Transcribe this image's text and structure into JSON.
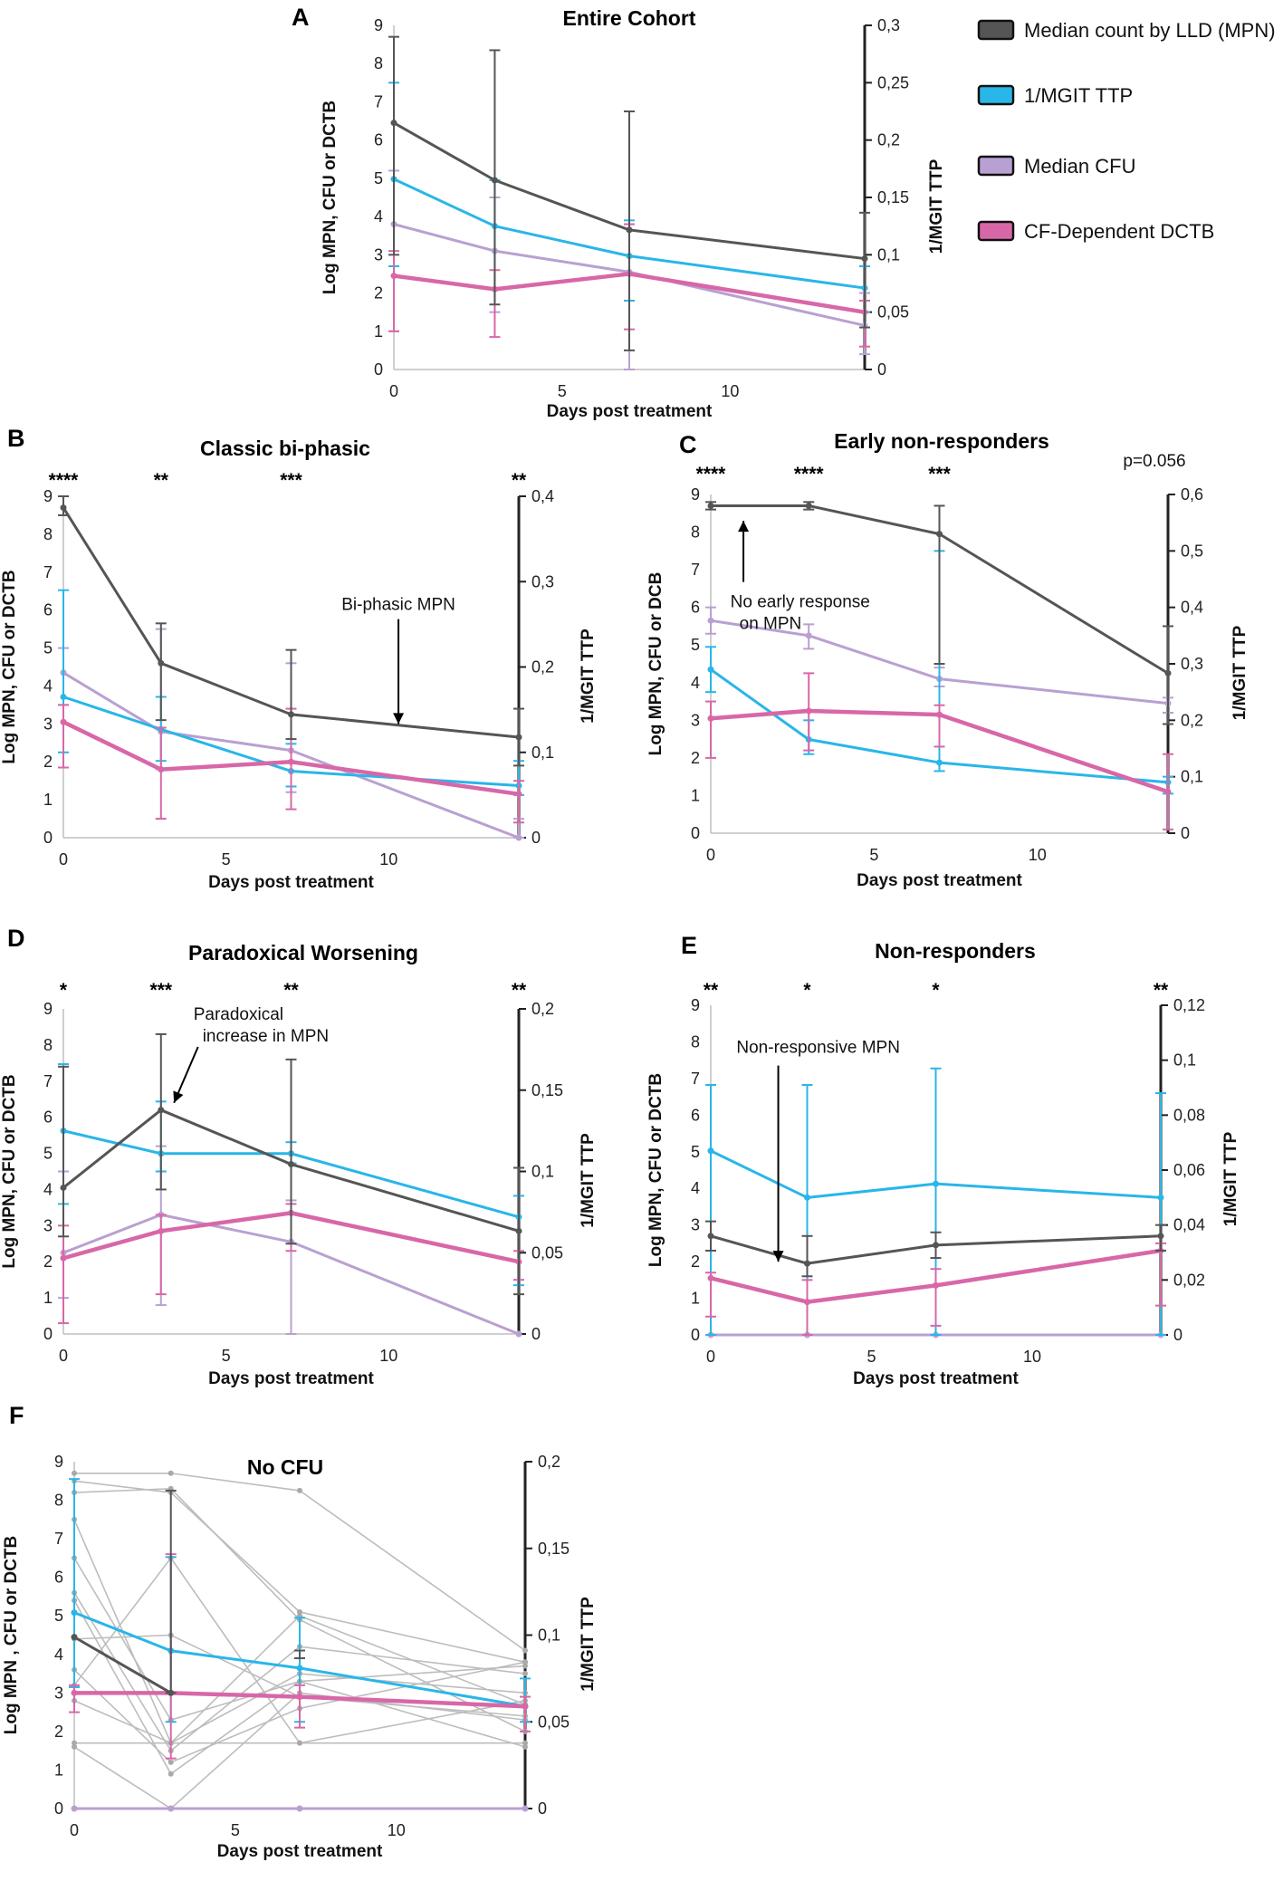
{
  "colors": {
    "mpn": "#555555",
    "mgit": "#29b6e8",
    "cfu": "#b9a0d2",
    "dctb": "#d867a8",
    "individual": "#bdbdbd"
  },
  "legend": [
    {
      "key": "mpn",
      "label": "Median count by LLD (MPN)"
    },
    {
      "key": "mgit",
      "label": "1/MGIT TTP"
    },
    {
      "key": "cfu",
      "label": "Median CFU"
    },
    {
      "key": "dctb",
      "label": "CF-Dependent DCTB"
    }
  ],
  "chart_data": [
    {
      "id": "A",
      "type": "line",
      "letter": "A",
      "title": "Entire Cohort",
      "xlabel": "Days post treatment",
      "ylabel": "Log MPN, CFU or DCTB",
      "y2label": "1/MGIT TTP",
      "xlim": [
        0,
        14
      ],
      "xticks": [
        0,
        5,
        10
      ],
      "ylim": [
        0,
        9
      ],
      "yticks": [
        "0",
        "1",
        "2",
        "3",
        "4",
        "5",
        "6",
        "7",
        "8",
        "9"
      ],
      "y2lim": [
        0,
        0.3
      ],
      "y2ticks": [
        "0",
        "0,05",
        "0,1",
        "0,15",
        "0,2",
        "0,25",
        "0,3"
      ],
      "x": [
        0,
        3,
        7,
        14
      ],
      "series": [
        {
          "key": "mpn",
          "axis": "left",
          "values": [
            6.45,
            4.95,
            3.65,
            2.9
          ],
          "err_hi": [
            8.7,
            8.35,
            6.75,
            4.1
          ],
          "err_lo": [
            3.0,
            1.7,
            0.5,
            1.1
          ]
        },
        {
          "key": "mgit",
          "axis": "right",
          "values": [
            0.166,
            0.125,
            0.099,
            0.071
          ],
          "err_hi": [
            0.25,
            0.165,
            0.13,
            0.09
          ],
          "err_lo": [
            0.09,
            0.07,
            0.06,
            0.05
          ]
        },
        {
          "key": "cfu",
          "axis": "left",
          "values": [
            3.8,
            3.1,
            2.55,
            1.15
          ],
          "err_hi": [
            5.2,
            4.5,
            3.8,
            2.0
          ],
          "err_lo": [
            1.0,
            1.5,
            0.0,
            0.4
          ]
        },
        {
          "key": "dctb",
          "axis": "left",
          "values": [
            2.45,
            2.1,
            2.5,
            1.5
          ],
          "err_hi": [
            3.1,
            2.6,
            3.8,
            1.8
          ],
          "err_lo": [
            1.0,
            0.85,
            1.05,
            0.6
          ]
        }
      ]
    },
    {
      "id": "B",
      "type": "line",
      "letter": "B",
      "title": "Classic bi-phasic",
      "xlabel": "Days post treatment",
      "ylabel": "Log MPN, CFU  or DCTB",
      "y2label": "1/MGIT TTP",
      "xlim": [
        0,
        14
      ],
      "xticks": [
        0,
        5,
        10
      ],
      "ylim": [
        0,
        9
      ],
      "yticks": [
        "0",
        "1",
        "2",
        "3",
        "4",
        "5",
        "6",
        "7",
        "8",
        "9"
      ],
      "y2lim": [
        0,
        0.4
      ],
      "y2ticks": [
        "0",
        "0,1",
        "0,2",
        "0,3",
        "0,4"
      ],
      "x": [
        0,
        3,
        7,
        14
      ],
      "significance": [
        {
          "x": 0,
          "label": "****"
        },
        {
          "x": 3,
          "label": "**"
        },
        {
          "x": 7,
          "label": "***"
        },
        {
          "x": 14,
          "label": "**"
        }
      ],
      "annotations": [
        {
          "text": "Bi-phasic MPN",
          "x": 10.3,
          "y": 6.0,
          "arrow_to_y": 3.0
        }
      ],
      "series": [
        {
          "key": "mpn",
          "axis": "left",
          "values": [
            8.7,
            4.6,
            3.25,
            2.65
          ],
          "err_hi": [
            9.0,
            5.65,
            4.95,
            3.4
          ],
          "err_lo": [
            8.5,
            3.1,
            2.6,
            1.9
          ]
        },
        {
          "key": "mgit",
          "axis": "right",
          "values": [
            0.165,
            0.127,
            0.078,
            0.061
          ],
          "err_hi": [
            0.29,
            0.165,
            0.11,
            0.09
          ],
          "err_lo": [
            0.1,
            0.09,
            0.06,
            0.05
          ]
        },
        {
          "key": "cfu",
          "axis": "left",
          "values": [
            4.35,
            2.8,
            2.3,
            0.0
          ],
          "err_hi": [
            5.0,
            5.5,
            4.6,
            0.5
          ],
          "err_lo": [
            3.5,
            1.8,
            1.2,
            0.0
          ]
        },
        {
          "key": "dctb",
          "axis": "left",
          "values": [
            3.05,
            1.8,
            2.0,
            1.15
          ],
          "err_hi": [
            3.5,
            2.9,
            3.4,
            1.5
          ],
          "err_lo": [
            1.85,
            0.5,
            0.75,
            0.4
          ]
        }
      ]
    },
    {
      "id": "C",
      "type": "line",
      "letter": "C",
      "title": "Early non-responders",
      "xlabel": "Days post treatment",
      "ylabel": "Log MPN,  CFU or DCB",
      "y2label": "1/MGIT TTP",
      "xlim": [
        0,
        14
      ],
      "xticks": [
        0,
        5,
        10
      ],
      "ylim": [
        0,
        9
      ],
      "yticks": [
        "0",
        "1",
        "2",
        "3",
        "4",
        "5",
        "6",
        "7",
        "8",
        "9"
      ],
      "y2lim": [
        0,
        0.6
      ],
      "y2ticks": [
        "0",
        "0,1",
        "0,2",
        "0,3",
        "0,4",
        "0,5",
        "0,6"
      ],
      "x": [
        0,
        3,
        7,
        14
      ],
      "significance": [
        {
          "x": 0,
          "label": "****"
        },
        {
          "x": 3,
          "label": "****"
        },
        {
          "x": 7,
          "label": "***"
        }
      ],
      "pvalue": "p=0.056",
      "annotations": [
        {
          "text": "No early response",
          "text2": "on  MPN",
          "x": 0.6,
          "y": 6.0,
          "arrow_to_y": 8.3
        }
      ],
      "series": [
        {
          "key": "mpn",
          "axis": "left",
          "values": [
            8.7,
            8.7,
            7.95,
            4.25
          ],
          "err_hi": [
            8.8,
            8.8,
            8.7,
            5.5
          ],
          "err_lo": [
            8.6,
            8.6,
            4.5,
            2.9
          ]
        },
        {
          "key": "mgit",
          "axis": "right",
          "values": [
            0.29,
            0.166,
            0.125,
            0.09
          ],
          "err_hi": [
            0.33,
            0.2,
            0.5,
            0.1
          ],
          "err_lo": [
            0.25,
            0.14,
            0.11,
            0.07
          ]
        },
        {
          "key": "cfu",
          "axis": "left",
          "values": [
            5.65,
            5.25,
            4.1,
            3.45
          ],
          "err_hi": [
            6.0,
            5.55,
            4.4,
            3.6
          ],
          "err_lo": [
            5.3,
            4.9,
            3.9,
            3.2
          ]
        },
        {
          "key": "dctb",
          "axis": "left",
          "values": [
            3.05,
            3.25,
            3.15,
            1.1
          ],
          "err_hi": [
            3.5,
            4.25,
            3.4,
            2.1
          ],
          "err_lo": [
            2.0,
            2.2,
            2.3,
            0.1
          ]
        }
      ]
    },
    {
      "id": "D",
      "type": "line",
      "letter": "D",
      "title": "Paradoxical Worsening",
      "xlabel": "Days post treatment",
      "ylabel": "Log MPN, CFU or DCTB",
      "y2label": "1/MGIT TTP",
      "xlim": [
        0,
        14
      ],
      "xticks": [
        0,
        5,
        10
      ],
      "ylim": [
        0,
        9
      ],
      "yticks": [
        "0",
        "1",
        "2",
        "3",
        "4",
        "5",
        "6",
        "7",
        "8",
        "9"
      ],
      "y2lim": [
        0,
        0.2
      ],
      "y2ticks": [
        "0",
        "0,05",
        "0,1",
        "0,15",
        "0,2"
      ],
      "x": [
        0,
        3,
        7,
        14
      ],
      "significance": [
        {
          "x": 0,
          "label": "*"
        },
        {
          "x": 3,
          "label": "***"
        },
        {
          "x": 7,
          "label": "**"
        },
        {
          "x": 14,
          "label": "**"
        }
      ],
      "annotations": [
        {
          "text": "Paradoxical",
          "text2": "increase in MPN",
          "x": 4.0,
          "y": 8.7,
          "arrow_to_x": 3.4,
          "arrow_to_y": 6.4
        }
      ],
      "series": [
        {
          "key": "mpn",
          "axis": "left",
          "values": [
            4.05,
            6.2,
            4.7,
            2.85
          ],
          "err_hi": [
            7.4,
            8.3,
            7.6,
            4.6
          ],
          "err_lo": [
            2.7,
            4.0,
            2.5,
            1.1
          ]
        },
        {
          "key": "mgit",
          "axis": "right",
          "values": [
            0.125,
            0.111,
            0.111,
            0.072
          ],
          "err_hi": [
            0.166,
            0.143,
            0.118,
            0.085
          ],
          "err_lo": [
            0.08,
            0.1,
            0.105,
            0.03
          ]
        },
        {
          "key": "cfu",
          "axis": "left",
          "values": [
            2.25,
            3.3,
            2.55,
            0.0
          ],
          "err_hi": [
            4.5,
            5.2,
            3.7,
            0.0
          ],
          "err_lo": [
            1.0,
            0.8,
            0.0,
            0.0
          ]
        },
        {
          "key": "dctb",
          "axis": "left",
          "values": [
            2.1,
            2.85,
            3.35,
            2.0
          ],
          "err_hi": [
            3.0,
            3.3,
            3.6,
            2.3
          ],
          "err_lo": [
            0.3,
            1.1,
            2.3,
            1.5
          ]
        }
      ]
    },
    {
      "id": "E",
      "type": "line",
      "letter": "E",
      "title": "Non-responders",
      "xlabel": "Days post treatment",
      "ylabel": "Log MPN, CFU or DCTB",
      "y2label": "1/MGIT TTP",
      "xlim": [
        0,
        14
      ],
      "xticks": [
        0,
        5,
        10
      ],
      "ylim": [
        0,
        9
      ],
      "yticks": [
        "0",
        "1",
        "2",
        "3",
        "4",
        "5",
        "6",
        "7",
        "8",
        "9"
      ],
      "y2lim": [
        0,
        0.12
      ],
      "y2ticks": [
        "0",
        "0,02",
        "0,04",
        "0,06",
        "0,08",
        "0,1",
        "0,12"
      ],
      "x": [
        0,
        3,
        7,
        14
      ],
      "significance": [
        {
          "x": 0,
          "label": "**"
        },
        {
          "x": 3,
          "label": "*"
        },
        {
          "x": 7,
          "label": "*"
        },
        {
          "x": 14,
          "label": "**"
        }
      ],
      "annotations": [
        {
          "text": "Non-responsive MPN",
          "x": 0.8,
          "y": 7.7,
          "arrow_to_x": 2.1,
          "arrow_to_y": 2.0
        }
      ],
      "series": [
        {
          "key": "mpn",
          "axis": "left",
          "values": [
            2.7,
            1.95,
            2.45,
            2.7
          ],
          "err_hi": [
            3.1,
            2.7,
            2.8,
            3.0
          ],
          "err_lo": [
            2.3,
            1.6,
            2.1,
            2.3
          ]
        },
        {
          "key": "mgit",
          "axis": "right",
          "values": [
            0.067,
            0.05,
            0.055,
            0.05
          ],
          "err_hi": [
            0.091,
            0.091,
            0.097,
            0.088
          ],
          "err_lo": [
            0.0,
            0.0,
            0.0,
            0.0
          ]
        },
        {
          "key": "cfu",
          "axis": "left",
          "values": [
            0.0,
            0.0,
            0.0,
            0.0
          ],
          "err_hi": [
            0.0,
            0.0,
            0.0,
            0.0
          ],
          "err_lo": [
            0.0,
            0.0,
            0.0,
            0.0
          ]
        },
        {
          "key": "dctb",
          "axis": "left",
          "values": [
            1.55,
            0.9,
            1.35,
            2.3
          ],
          "err_hi": [
            1.7,
            1.5,
            1.8,
            2.5
          ],
          "err_lo": [
            0.5,
            0.0,
            0.25,
            0.8
          ]
        }
      ]
    },
    {
      "id": "F",
      "type": "line",
      "letter": "F",
      "title": "No CFU",
      "xlabel": "Days post treatment",
      "ylabel": "Log MPN ,  CFU or DCTB",
      "y2label": "1/MGIT TTP",
      "xlim": [
        0,
        14
      ],
      "xticks": [
        0,
        5,
        10
      ],
      "ylim": [
        0,
        9
      ],
      "yticks": [
        "0",
        "1",
        "2",
        "3",
        "4",
        "5",
        "6",
        "7",
        "8",
        "9"
      ],
      "y2lim": [
        0,
        0.2
      ],
      "y2ticks": [
        "0",
        "0,05",
        "0,1",
        "0,15",
        "0,2"
      ],
      "x": [
        0,
        3,
        7,
        14
      ],
      "individual_lines": [
        [
          8.7,
          8.7,
          8.25,
          4.1
        ],
        [
          8.5,
          8.2,
          5.1,
          3.8
        ],
        [
          8.2,
          8.3,
          4.9,
          2.0
        ],
        [
          7.5,
          1.7,
          5.0,
          2.7
        ],
        [
          6.5,
          2.3,
          3.3,
          3.7
        ],
        [
          5.6,
          1.5,
          4.2,
          3.5
        ],
        [
          5.4,
          0.9,
          3.3,
          1.6
        ],
        [
          4.4,
          4.5,
          2.9,
          2.4
        ],
        [
          3.6,
          1.2,
          2.6,
          3.8
        ],
        [
          3.2,
          6.5,
          1.7,
          2.8
        ],
        [
          2.8,
          1.7,
          3.5,
          3.0
        ],
        [
          1.7,
          1.7,
          1.7,
          1.7
        ],
        [
          1.6,
          0.0,
          3.0,
          2.3
        ]
      ],
      "series": [
        {
          "key": "mpn",
          "axis": "left",
          "values": [
            4.45,
            3.0,
            null,
            null
          ],
          "err_hi": [
            null,
            8.25,
            4.1,
            null
          ],
          "err_lo": [
            null,
            3.0,
            3.9,
            null
          ]
        },
        {
          "key": "mgit",
          "axis": "right",
          "values": [
            0.113,
            0.091,
            0.081,
            0.059
          ],
          "err_hi": [
            0.19,
            0.145,
            0.11,
            0.075
          ],
          "err_lo": [
            0.07,
            0.05,
            0.05,
            0.05
          ]
        },
        {
          "key": "cfu",
          "axis": "left",
          "values": [
            0.0,
            0.0,
            0.0,
            0.0
          ],
          "err_hi": [
            0.0,
            0.0,
            0.0,
            0.0
          ],
          "err_lo": [
            0.0,
            0.0,
            0.0,
            0.0
          ]
        },
        {
          "key": "dctb",
          "axis": "left",
          "values": [
            3.0,
            3.0,
            2.9,
            2.65
          ],
          "err_hi": [
            3.2,
            6.6,
            3.2,
            2.9
          ],
          "err_lo": [
            2.5,
            1.3,
            2.1,
            2.0
          ]
        }
      ]
    }
  ]
}
